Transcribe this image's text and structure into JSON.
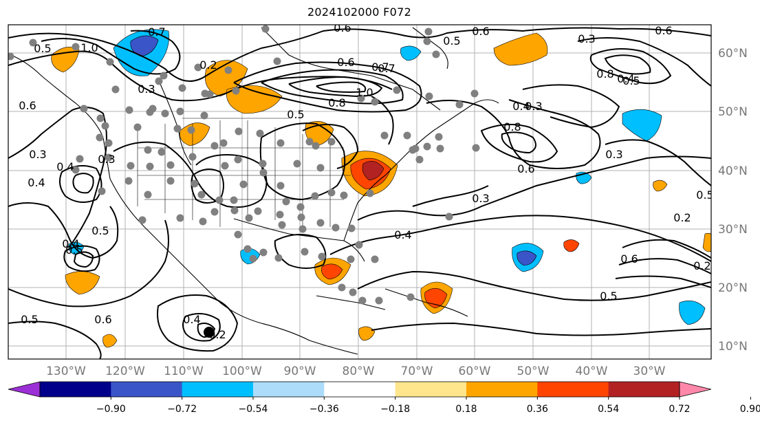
{
  "title": "2024102000 F072",
  "map": {
    "lon_labels": [
      "130°W",
      "120°W",
      "110°W",
      "100°W",
      "90°W",
      "80°W",
      "70°W",
      "60°W",
      "50°W",
      "40°W",
      "30°W"
    ],
    "lat_labels": [
      "60°N",
      "50°N",
      "40°N",
      "30°N",
      "20°N",
      "10°N"
    ],
    "contour_labels": [
      {
        "text": "0.5"
      },
      {
        "text": "1.0"
      },
      {
        "text": "0.7"
      },
      {
        "text": "0.6"
      },
      {
        "text": "0.5"
      },
      {
        "text": "0.6"
      },
      {
        "text": "0.3"
      },
      {
        "text": "0.6"
      },
      {
        "text": "0.3"
      },
      {
        "text": "0.2"
      },
      {
        "text": "0.6"
      },
      {
        "text": "0.7"
      },
      {
        "text": "1.0"
      },
      {
        "text": "0.8"
      },
      {
        "text": "0.5"
      },
      {
        "text": "0.3"
      },
      {
        "text": "0.4"
      },
      {
        "text": "0.8"
      },
      {
        "text": "0.8"
      },
      {
        "text": "0.4"
      },
      {
        "text": "0.5"
      },
      {
        "text": "0.6"
      },
      {
        "text": "0.3"
      },
      {
        "text": "0.4"
      },
      {
        "text": "0.3"
      },
      {
        "text": "0.4"
      },
      {
        "text": "0.5"
      },
      {
        "text": "0.5"
      },
      {
        "text": "0.4"
      },
      {
        "text": "0.3"
      },
      {
        "text": "0.6"
      },
      {
        "text": "0.5"
      },
      {
        "text": "0.5"
      },
      {
        "text": "0.4"
      },
      {
        "text": "0.2"
      },
      {
        "text": "0.2"
      },
      {
        "text": "0.2"
      },
      {
        "text": "0.3"
      },
      {
        "text": "0.4"
      },
      {
        "text": "0.6"
      },
      {
        "text": "0.5"
      },
      {
        "text": "0.6"
      },
      {
        "text": "0.7"
      }
    ],
    "station_marker_color": "#808080",
    "storm_marker_color": "#000000"
  },
  "colorbar": {
    "colors": [
      "#9b30d6",
      "#00008b",
      "#3a55c8",
      "#00bfff",
      "#acdcfa",
      "#ffffff",
      "#ffe68c",
      "#ffa500",
      "#ff4500",
      "#b22222",
      "#ff88aa"
    ],
    "ticks": [
      "−0.90",
      "−0.72",
      "−0.54",
      "−0.36",
      "−0.18",
      "0.18",
      "0.36",
      "0.54",
      "0.72",
      "0.90"
    ]
  }
}
